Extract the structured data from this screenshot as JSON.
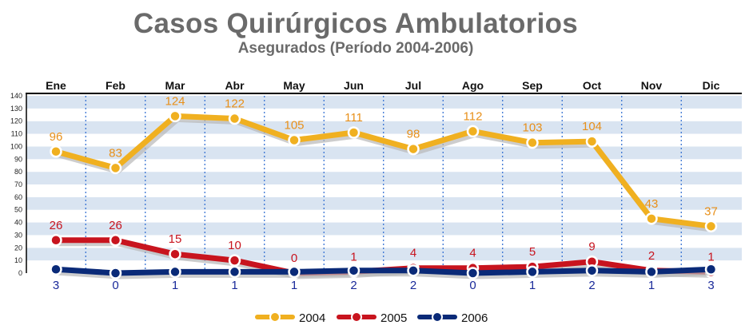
{
  "chart_data": {
    "type": "line",
    "title": "Casos Quirúrgicos Ambulatorios",
    "subtitle": "Asegurados (Período 2004-2006)",
    "xlabel": "",
    "ylabel": "",
    "categories": [
      "Ene",
      "Feb",
      "Mar",
      "Abr",
      "May",
      "Jun",
      "Jul",
      "Ago",
      "Sep",
      "Oct",
      "Nov",
      "Dic"
    ],
    "ylim": [
      0,
      140
    ],
    "yticks": [
      0,
      10,
      20,
      30,
      40,
      50,
      60,
      70,
      80,
      90,
      100,
      110,
      120,
      130,
      140
    ],
    "grid": true,
    "legend_position": "bottom",
    "series": [
      {
        "name": "2004",
        "color": "#f0b020",
        "label_color": "#e8901a",
        "label_position": "above",
        "values": [
          96,
          83,
          124,
          122,
          105,
          111,
          98,
          112,
          103,
          104,
          43,
          37
        ]
      },
      {
        "name": "2005",
        "color": "#c8141e",
        "label_color": "#c8141e",
        "label_position": "above",
        "values": [
          26,
          26,
          15,
          10,
          0,
          1,
          4,
          4,
          5,
          9,
          2,
          1
        ]
      },
      {
        "name": "2006",
        "color": "#0a2a78",
        "label_color": "#1a2a9a",
        "label_position": "below",
        "values": [
          3,
          0,
          1,
          1,
          1,
          2,
          2,
          0,
          1,
          2,
          1,
          3
        ]
      }
    ]
  }
}
